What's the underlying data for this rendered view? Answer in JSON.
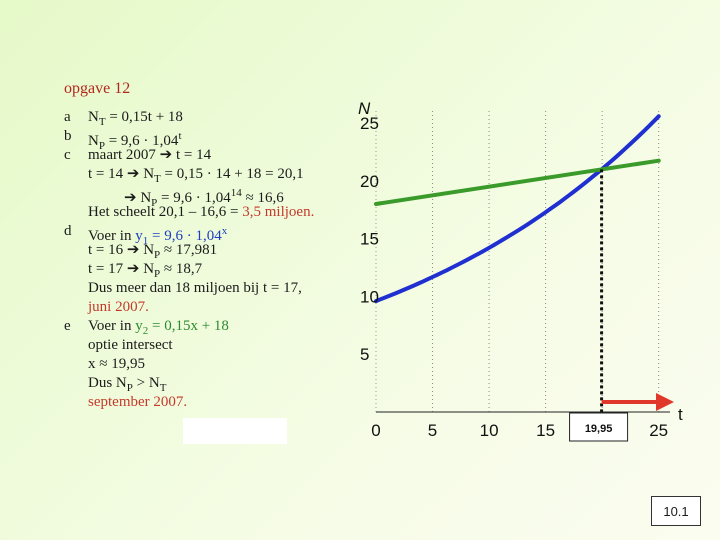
{
  "title": "opgave 12",
  "lines": [
    {
      "marker": "a",
      "parts": [
        {
          "t": "N"
        },
        {
          "t": "T",
          "sub": true
        },
        {
          "t": " = 0,15t + 18"
        }
      ]
    },
    {
      "marker": "b",
      "parts": [
        {
          "t": "N"
        },
        {
          "t": "P",
          "sub": true
        },
        {
          "t": " = 9,6 · 1,04"
        },
        {
          "t": "t",
          "sup": true
        }
      ]
    },
    {
      "marker": "c",
      "parts": [
        {
          "t": "maart 2007 ➔ t = 14"
        }
      ]
    },
    {
      "marker": "",
      "parts": [
        {
          "t": "t = 14 ➔ N"
        },
        {
          "t": "T",
          "sub": true
        },
        {
          "t": " = 0,15 · 14 + 18 = 20,1"
        }
      ]
    },
    {
      "marker": "",
      "indent": 2,
      "parts": [
        {
          "t": "➔ N"
        },
        {
          "t": "P",
          "sub": true
        },
        {
          "t": " = 9,6 · 1,04"
        },
        {
          "t": "14",
          "sup": true
        },
        {
          "t": " ≈ 16,6"
        }
      ]
    },
    {
      "marker": "",
      "parts": [
        {
          "t": "Het scheelt 20,1 – 16,6 = "
        },
        {
          "t": "3,5 miljoen.",
          "color": "red"
        }
      ]
    },
    {
      "marker": "d",
      "parts": [
        {
          "t": "Voer in "
        },
        {
          "t": "y",
          "color": "blue"
        },
        {
          "t": "1",
          "sub": true,
          "color": "blue"
        },
        {
          "t": " = 9,6 · 1,04",
          "color": "blue"
        },
        {
          "t": "x",
          "sup": true,
          "color": "blue"
        }
      ]
    },
    {
      "marker": "",
      "parts": [
        {
          "t": "t = 16 ➔ N"
        },
        {
          "t": "P",
          "sub": true
        },
        {
          "t": " ≈ 17,981"
        }
      ]
    },
    {
      "marker": "",
      "parts": [
        {
          "t": "t = 17 ➔ N"
        },
        {
          "t": "P",
          "sub": true
        },
        {
          "t": " ≈ 18,7"
        }
      ]
    },
    {
      "marker": "",
      "parts": [
        {
          "t": "Dus meer dan 18 miljoen bij t = 17,"
        }
      ]
    },
    {
      "marker": "",
      "parts": [
        {
          "t": "juni 2007.",
          "color": "red"
        }
      ]
    },
    {
      "marker": "e",
      "parts": [
        {
          "t": "Voer in "
        },
        {
          "t": "y",
          "color": "green"
        },
        {
          "t": "2",
          "sub": true,
          "color": "green"
        },
        {
          "t": " = 0,15x + 18",
          "color": "green"
        }
      ]
    },
    {
      "marker": "",
      "parts": [
        {
          "t": "optie intersect"
        }
      ]
    },
    {
      "marker": "",
      "parts": [
        {
          "t": "x ≈ 19,95"
        }
      ]
    },
    {
      "marker": "",
      "parts": [
        {
          "t": "Dus N"
        },
        {
          "t": "P",
          "sub": true
        },
        {
          "t": " > N"
        },
        {
          "t": "T",
          "sub": true
        }
      ]
    },
    {
      "marker": "",
      "parts": [
        {
          "t": "september 2007.",
          "color": "red"
        }
      ]
    }
  ],
  "graph": {
    "y_axis_label": "N",
    "x_axis_label": "t",
    "x_ticks": [
      "0",
      "5",
      "10",
      "15",
      "25"
    ],
    "y_ticks": [
      "5",
      "10",
      "15",
      "20",
      "25"
    ],
    "intersection_label": "19,95"
  },
  "chart_data": {
    "type": "line",
    "xlabel": "t",
    "ylabel": "N",
    "xlim": [
      0,
      26
    ],
    "ylim": [
      0,
      27
    ],
    "series": [
      {
        "name": "N_P = 9,6 · 1,04^t",
        "color": "#1f2fd0",
        "formula": "9.6*1.04^t",
        "x": [
          0,
          5,
          10,
          15,
          19.95,
          25
        ],
        "values": [
          9.6,
          11.68,
          14.21,
          17.29,
          21.0,
          25.6
        ]
      },
      {
        "name": "N_T = 0,15t + 18",
        "color": "#3a9a2a",
        "formula": "0.15*t+18",
        "x": [
          0,
          25
        ],
        "values": [
          18.0,
          21.75
        ]
      }
    ],
    "intersection": {
      "x": 19.95,
      "y": 21.0
    }
  },
  "page_label": "10.1",
  "colors": {
    "red": "#c43a2a",
    "blue": "#1e3fbf",
    "green": "#2e8b2e"
  }
}
